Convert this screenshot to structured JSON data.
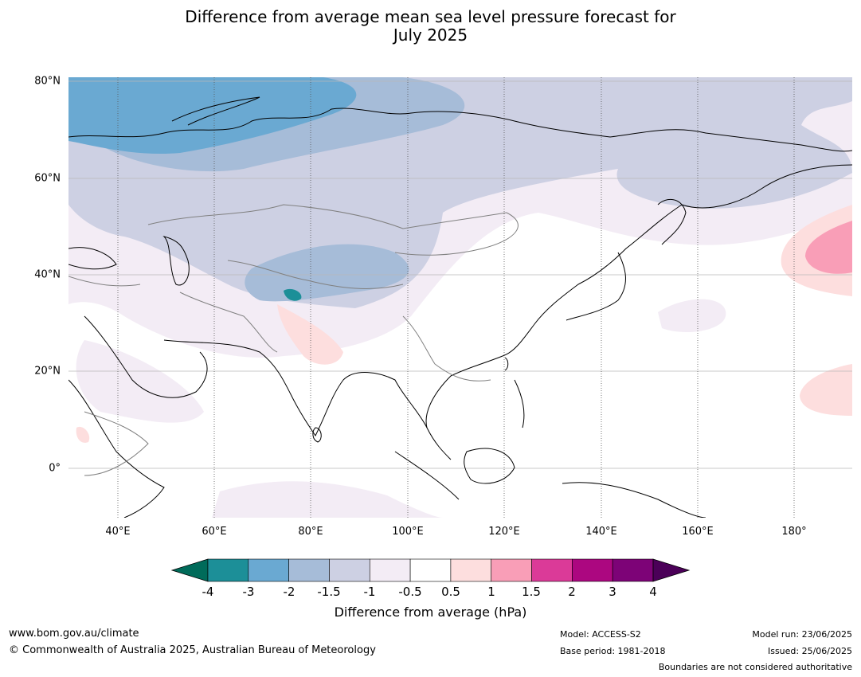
{
  "title": {
    "line1": "Difference from average mean sea level pressure forecast for",
    "line2": "July 2025"
  },
  "map": {
    "lat_labels": [
      "80°N",
      "60°N",
      "40°N",
      "20°N",
      "0°"
    ],
    "lon_labels": [
      "40°E",
      "60°E",
      "80°E",
      "100°E",
      "120°E",
      "140°E",
      "160°E",
      "180°"
    ]
  },
  "colorbar": {
    "title": "Difference from average (hPa)",
    "ticks": [
      "-4",
      "-3",
      "-2",
      "-1.5",
      "-1",
      "-0.5",
      "0.5",
      "1",
      "1.5",
      "2",
      "3",
      "4"
    ],
    "colors": {
      "under": "#006b5a",
      "bins": [
        "#1c8f98",
        "#6aa9d2",
        "#a6bcd8",
        "#cdd0e3",
        "#f3ecf5",
        "#ffffff",
        "#fddede",
        "#f99eb7",
        "#db3a98",
        "#ac0780",
        "#7d0377"
      ],
      "over": "#4b0058"
    }
  },
  "footer": {
    "website": "www.bom.gov.au/climate",
    "copyright": "© Commonwealth of Australia 2025, Australian Bureau of Meteorology",
    "model": "Model: ACCESS-S2",
    "base_period": "Base period: 1981-2018",
    "model_run": "Model run: 23/06/2025",
    "issued": "Issued: 25/06/2025",
    "disclaimer": "Boundaries are not considered authoritative"
  }
}
